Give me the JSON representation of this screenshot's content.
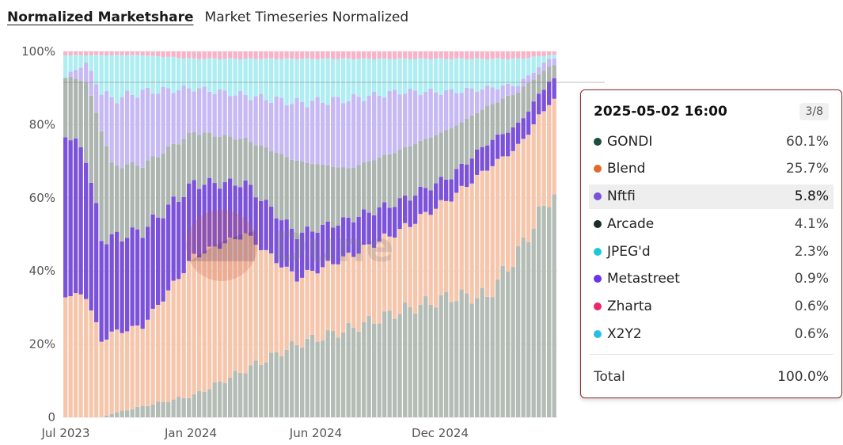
{
  "header": {
    "title": "Normalized Marketshare",
    "subtitle": "Market Timeseries Normalized"
  },
  "chart_data": {
    "type": "bar",
    "stacked": true,
    "ylim": [
      0,
      100
    ],
    "y_ticks": [
      "0",
      "20%",
      "40%",
      "60%",
      "80%",
      "100%"
    ],
    "x_ticks": [
      "Jul 2023",
      "Jan 2024",
      "Jun 2024",
      "Dec 2024"
    ],
    "watermark": "Dune",
    "colors": {
      "GONDI": "#b4bcb6",
      "Blend": "#f6c6ac",
      "Nftfi": "#7b52d9",
      "Arcade": "#adb5b0",
      "JPEG'd": "#c7baf4",
      "X2Y2": "#aeeef2",
      "Zharta": "#f8b3c8",
      "Metastreet": "#c3d6f2"
    },
    "series_order": [
      "GONDI",
      "Blend",
      "Nftfi",
      "Arcade",
      "JPEG'd",
      "X2Y2",
      "Zharta",
      "Metastreet"
    ],
    "keyframes": [
      {
        "i": 0,
        "GONDI": 0,
        "Blend": 33,
        "Nftfi": 44,
        "Arcade": 15,
        "JPEG'd": 0,
        "X2Y2": 6,
        "Zharta": 1
      },
      {
        "i": 4,
        "GONDI": 0,
        "Blend": 33,
        "Nftfi": 38,
        "Arcade": 20,
        "JPEG'd": 5,
        "X2Y2": 2,
        "Zharta": 1
      },
      {
        "i": 7,
        "GONDI": 0,
        "Blend": 21,
        "Nftfi": 28,
        "Arcade": 30,
        "JPEG'd": 10,
        "X2Y2": 10,
        "Zharta": 1
      },
      {
        "i": 9,
        "GONDI": 1,
        "Blend": 22,
        "Nftfi": 26,
        "Arcade": 20,
        "JPEG'd": 18,
        "X2Y2": 12,
        "Zharta": 1
      },
      {
        "i": 15,
        "GONDI": 3,
        "Blend": 22,
        "Nftfi": 26,
        "Arcade": 18,
        "JPEG'd": 20,
        "X2Y2": 10,
        "Zharta": 1
      },
      {
        "i": 25,
        "GONDI": 6,
        "Blend": 38,
        "Nftfi": 20,
        "Arcade": 14,
        "JPEG'd": 12,
        "X2Y2": 8,
        "Zharta": 2
      },
      {
        "i": 35,
        "GONDI": 13,
        "Blend": 37,
        "Nftfi": 14,
        "Arcade": 12,
        "JPEG'd": 12,
        "X2Y2": 10,
        "Zharta": 2
      },
      {
        "i": 45,
        "GONDI": 20,
        "Blend": 18,
        "Nftfi": 12,
        "Arcade": 20,
        "JPEG'd": 16,
        "X2Y2": 12,
        "Zharta": 2
      },
      {
        "i": 55,
        "GONDI": 24,
        "Blend": 20,
        "Nftfi": 10,
        "Arcade": 14,
        "JPEG'd": 19,
        "X2Y2": 11,
        "Zharta": 2
      },
      {
        "i": 65,
        "GONDI": 29,
        "Blend": 22,
        "Nftfi": 8,
        "Arcade": 14,
        "JPEG'd": 16,
        "X2Y2": 9,
        "Zharta": 2
      },
      {
        "i": 75,
        "GONDI": 33,
        "Blend": 27,
        "Nftfi": 6,
        "Arcade": 13,
        "JPEG'd": 10,
        "X2Y2": 9,
        "Zharta": 2
      },
      {
        "i": 82,
        "GONDI": 33,
        "Blend": 35,
        "Nftfi": 7,
        "Arcade": 10,
        "JPEG'd": 5,
        "X2Y2": 8,
        "Zharta": 2
      },
      {
        "i": 88,
        "GONDI": 45,
        "Blend": 29,
        "Nftfi": 6,
        "Arcade": 9,
        "JPEG'd": 2,
        "X2Y2": 7,
        "Zharta": 2
      },
      {
        "i": 94,
        "GONDI": 60,
        "Blend": 26,
        "Nftfi": 6,
        "Arcade": 4,
        "JPEG'd": 2,
        "X2Y2": 1,
        "Zharta": 1
      }
    ]
  },
  "tooltip": {
    "date": "2025-05-02 16:00",
    "page": "3/8",
    "rows": [
      {
        "name": "GONDI",
        "value": "60.1%",
        "color": "#1f4d3d"
      },
      {
        "name": "Blend",
        "value": "25.7%",
        "color": "#e06b2a"
      },
      {
        "name": "Nftfi",
        "value": "5.8%",
        "color": "#7b52d9",
        "active": true
      },
      {
        "name": "Arcade",
        "value": "4.1%",
        "color": "#1e2b2b"
      },
      {
        "name": "JPEG'd",
        "value": "2.3%",
        "color": "#1fc8d8"
      },
      {
        "name": "Metastreet",
        "value": "0.9%",
        "color": "#6a35e6"
      },
      {
        "name": "Zharta",
        "value": "0.6%",
        "color": "#e8296a"
      },
      {
        "name": "X2Y2",
        "value": "0.6%",
        "color": "#2bbde8"
      }
    ],
    "total_label": "Total",
    "total_value": "100.0%"
  }
}
